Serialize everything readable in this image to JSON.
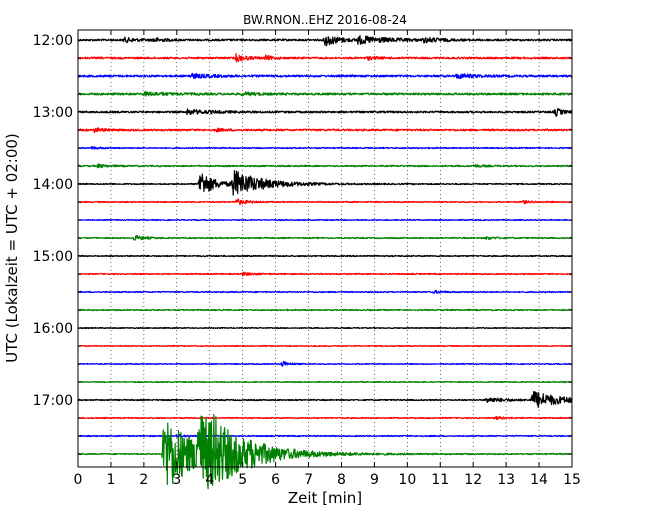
{
  "chart_data": {
    "type": "line",
    "title": "BW.RNON..EHZ 2016-08-24",
    "xlabel": "Zeit  [min]",
    "ylabel": "UTC (Lokalzeit = UTC + 02:00)",
    "xlim": [
      0,
      15
    ],
    "x_ticks": [
      "0",
      "1",
      "2",
      "3",
      "4",
      "5",
      "6",
      "7",
      "8",
      "9",
      "10",
      "11",
      "12",
      "13",
      "14",
      "15"
    ],
    "y_ticks": [
      "12:00",
      "13:00",
      "14:00",
      "15:00",
      "16:00",
      "17:00"
    ],
    "grid": "vertical dotted",
    "line_colors": [
      "#000000",
      "#ff0000",
      "#0000ff",
      "#008000"
    ],
    "trace_interval_minutes": 15,
    "traces": [
      {
        "start": "12:00",
        "color": "#000000",
        "noise": 0.9,
        "events": [
          {
            "t": 1.4,
            "amp": 2.2,
            "dur": 0.4
          },
          {
            "t": 2.3,
            "amp": 2.0,
            "dur": 0.3
          },
          {
            "t": 7.5,
            "amp": 6.0,
            "dur": 0.4
          },
          {
            "t": 8.5,
            "amp": 3.5,
            "dur": 1.0
          },
          {
            "t": 10.5,
            "amp": 2.0,
            "dur": 0.5
          }
        ]
      },
      {
        "start": "12:15",
        "color": "#ff0000",
        "noise": 0.9,
        "events": [
          {
            "t": 4.8,
            "amp": 3.5,
            "dur": 0.3
          },
          {
            "t": 5.7,
            "amp": 2.0,
            "dur": 0.2
          },
          {
            "t": 8.8,
            "amp": 1.5,
            "dur": 0.3
          }
        ]
      },
      {
        "start": "12:30",
        "color": "#0000ff",
        "noise": 1.0,
        "events": [
          {
            "t": 3.4,
            "amp": 2.0,
            "dur": 0.6
          },
          {
            "t": 11.5,
            "amp": 2.0,
            "dur": 0.6
          }
        ]
      },
      {
        "start": "12:45",
        "color": "#008000",
        "noise": 1.0,
        "events": [
          {
            "t": 2.0,
            "amp": 1.5,
            "dur": 0.8
          },
          {
            "t": 5.0,
            "amp": 1.5,
            "dur": 0.4
          }
        ]
      },
      {
        "start": "13:00",
        "color": "#000000",
        "noise": 0.9,
        "events": [
          {
            "t": 3.3,
            "amp": 2.2,
            "dur": 0.8
          },
          {
            "t": 14.5,
            "amp": 4.0,
            "dur": 0.2
          }
        ]
      },
      {
        "start": "13:15",
        "color": "#ff0000",
        "noise": 0.9,
        "events": [
          {
            "t": 0.5,
            "amp": 1.8,
            "dur": 0.3
          },
          {
            "t": 4.2,
            "amp": 1.2,
            "dur": 0.3
          }
        ]
      },
      {
        "start": "13:30",
        "color": "#0000ff",
        "noise": 0.6,
        "events": [
          {
            "t": 0.4,
            "amp": 1.0,
            "dur": 0.3
          }
        ]
      },
      {
        "start": "13:45",
        "color": "#008000",
        "noise": 0.7,
        "events": [
          {
            "t": 0.6,
            "amp": 1.5,
            "dur": 0.3
          },
          {
            "t": 12.0,
            "amp": 1.2,
            "dur": 0.3
          }
        ]
      },
      {
        "start": "14:00",
        "color": "#000000",
        "noise": 0.6,
        "events": [
          {
            "t": 3.7,
            "amp": 14.0,
            "dur": 0.4
          },
          {
            "t": 4.7,
            "amp": 13.0,
            "dur": 0.9
          }
        ]
      },
      {
        "start": "14:15",
        "color": "#ff0000",
        "noise": 0.6,
        "events": [
          {
            "t": 4.8,
            "amp": 3.0,
            "dur": 0.3
          },
          {
            "t": 13.5,
            "amp": 1.2,
            "dur": 0.3
          }
        ]
      },
      {
        "start": "14:30",
        "color": "#0000ff",
        "noise": 0.5,
        "events": []
      },
      {
        "start": "14:45",
        "color": "#008000",
        "noise": 0.6,
        "events": [
          {
            "t": 1.7,
            "amp": 2.5,
            "dur": 0.3
          },
          {
            "t": 12.4,
            "amp": 1.2,
            "dur": 0.3
          }
        ]
      },
      {
        "start": "15:00",
        "color": "#000000",
        "noise": 0.6,
        "events": []
      },
      {
        "start": "15:15",
        "color": "#ff0000",
        "noise": 0.6,
        "events": [
          {
            "t": 5.0,
            "amp": 1.5,
            "dur": 0.3
          }
        ]
      },
      {
        "start": "15:30",
        "color": "#0000ff",
        "noise": 0.6,
        "events": [
          {
            "t": 10.8,
            "amp": 1.2,
            "dur": 0.3
          }
        ]
      },
      {
        "start": "15:45",
        "color": "#008000",
        "noise": 0.6,
        "events": []
      },
      {
        "start": "16:00",
        "color": "#000000",
        "noise": 0.5,
        "events": []
      },
      {
        "start": "16:15",
        "color": "#ff0000",
        "noise": 0.5,
        "events": []
      },
      {
        "start": "16:30",
        "color": "#0000ff",
        "noise": 0.5,
        "events": [
          {
            "t": 6.2,
            "amp": 3.0,
            "dur": 0.2
          }
        ]
      },
      {
        "start": "16:45",
        "color": "#008000",
        "noise": 0.5,
        "events": []
      },
      {
        "start": "17:00",
        "color": "#000000",
        "noise": 0.6,
        "events": [
          {
            "t": 12.4,
            "amp": 2.5,
            "dur": 0.6
          },
          {
            "t": 13.8,
            "amp": 9.0,
            "dur": 0.8
          }
        ]
      },
      {
        "start": "17:15",
        "color": "#ff0000",
        "noise": 0.6,
        "events": [
          {
            "t": 12.7,
            "amp": 1.2,
            "dur": 0.3
          }
        ]
      },
      {
        "start": "17:30",
        "color": "#0000ff",
        "noise": 0.6,
        "events": [
          {
            "t": 3.0,
            "amp": 1.5,
            "dur": 0.3
          }
        ]
      },
      {
        "start": "17:45",
        "color": "#008000",
        "noise": 0.6,
        "events": [
          {
            "t": 2.6,
            "amp": 42.0,
            "dur": 0.9
          },
          {
            "t": 3.6,
            "amp": 34.0,
            "dur": 1.3
          },
          {
            "t": 4.1,
            "amp": 12.0,
            "dur": 0.4
          },
          {
            "t": 5.2,
            "amp": 3.0,
            "dur": 0.5
          }
        ]
      }
    ]
  }
}
